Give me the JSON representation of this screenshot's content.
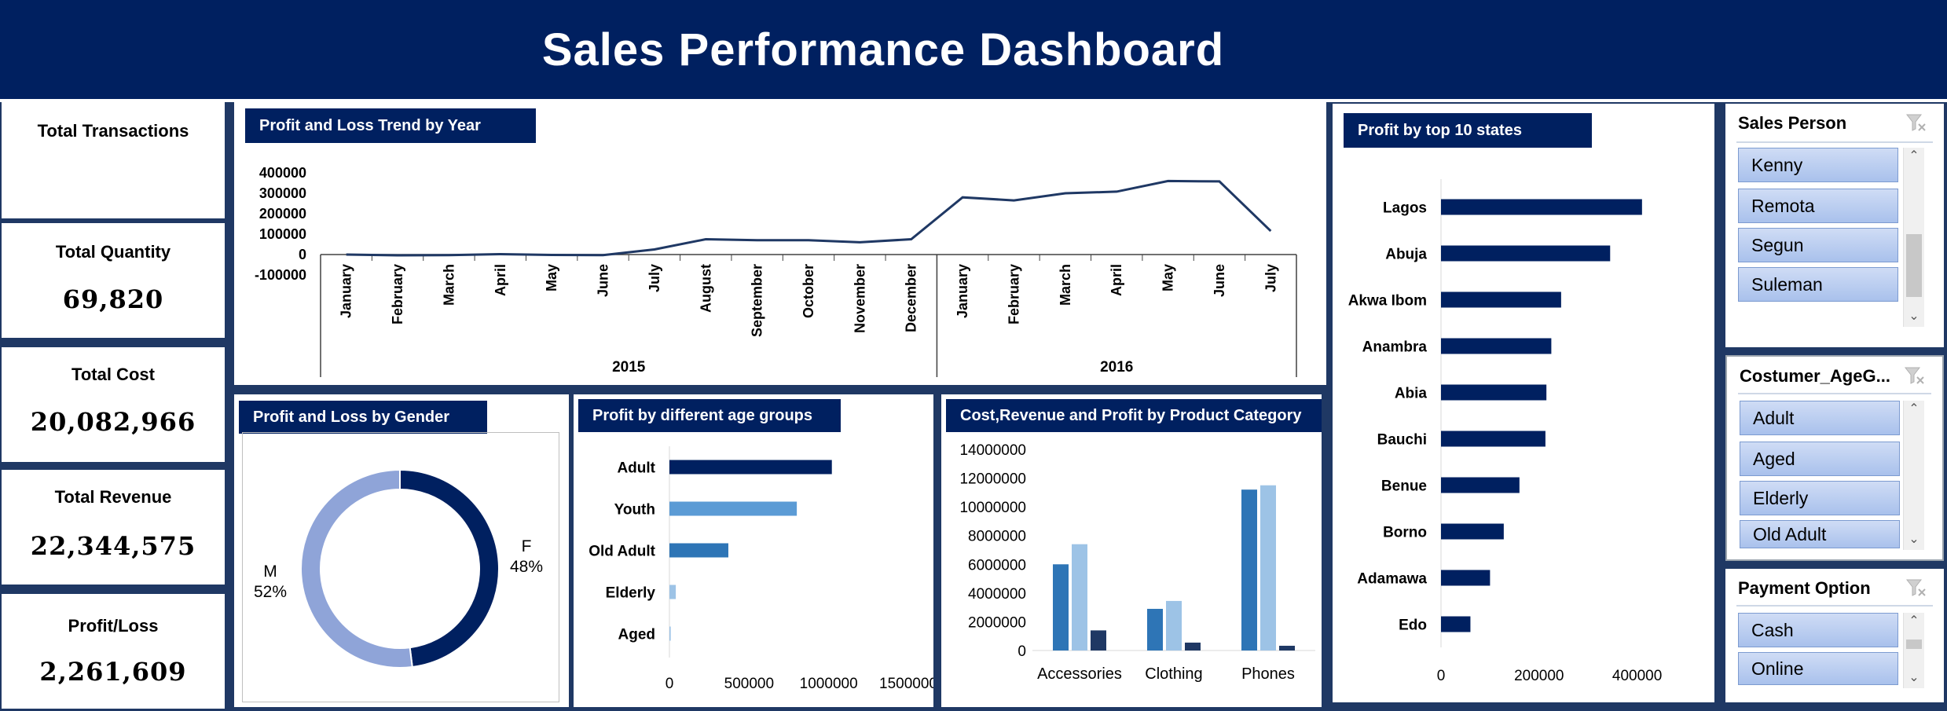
{
  "header": {
    "title": "Sales Performance Dashboard"
  },
  "kpis": [
    {
      "title": "Total Transactions",
      "value": ""
    },
    {
      "title": "Total Quantity",
      "value": "69,820"
    },
    {
      "title": "Total Cost",
      "value": "20,082,966"
    },
    {
      "title": "Total Revenue",
      "value": "22,344,575"
    },
    {
      "title": "Profit/Loss",
      "value": "2,261,609"
    }
  ],
  "colors": {
    "navy": "#002060",
    "mid_blue": "#2e75b6",
    "light_blue": "#9dc3e6",
    "sky_blue": "#5b9bd5",
    "dark_slate": "#1f3864",
    "donut_light": "#8fa4d8"
  },
  "slicers": {
    "sales_person": {
      "title": "Sales Person",
      "items": [
        "Kenny",
        "Remota",
        "Segun",
        "Suleman"
      ],
      "filter_icon": "clear-filter-icon"
    },
    "age_group": {
      "title": "Costumer_AgeG...",
      "items": [
        "Adult",
        "Aged",
        "Elderly",
        "Old Adult"
      ],
      "filter_icon": "clear-filter-icon"
    },
    "payment": {
      "title": "Payment Option",
      "items": [
        "Cash",
        "Online"
      ],
      "filter_icon": "clear-filter-icon"
    }
  },
  "chart_data": [
    {
      "id": "trend",
      "type": "line",
      "title": "Profit and Loss Trend by Year",
      "groups": [
        {
          "label": "2015",
          "categories": [
            "January",
            "February",
            "March",
            "April",
            "May",
            "June",
            "July",
            "August",
            "September",
            "October",
            "November",
            "December"
          ]
        },
        {
          "label": "2016",
          "categories": [
            "January",
            "February",
            "March",
            "April",
            "May",
            "June",
            "July"
          ]
        }
      ],
      "values": [
        0,
        -4000,
        -3000,
        2000,
        -2000,
        -3000,
        25000,
        75000,
        70000,
        70000,
        60000,
        75000,
        280000,
        265000,
        300000,
        308000,
        360000,
        358000,
        115000
      ],
      "yticks": [
        400000,
        300000,
        200000,
        100000,
        0,
        -100000
      ],
      "ylim": [
        -100000,
        400000
      ],
      "legend": "none"
    },
    {
      "id": "gender",
      "type": "pie",
      "variant": "donut",
      "title": "Profit and Loss by Gender",
      "slices": [
        {
          "label": "F",
          "percent_label": "48%",
          "value": 48
        },
        {
          "label": "M",
          "percent_label": "52%",
          "value": 52
        }
      ]
    },
    {
      "id": "age",
      "type": "bar",
      "orientation": "horizontal",
      "title": "Profit by different age groups",
      "categories": [
        "Adult",
        "Youth",
        "Old Adult",
        "Elderly",
        "Aged"
      ],
      "values": [
        1020000,
        800000,
        370000,
        40000,
        8000
      ],
      "xticks": [
        0,
        500000,
        1000000,
        1500000
      ],
      "xlim": [
        0,
        1500000
      ]
    },
    {
      "id": "category",
      "type": "bar",
      "title": "Cost,Revenue and Profit by Product  Category",
      "categories": [
        "Accessories",
        "Clothing",
        "Phones"
      ],
      "series": [
        {
          "values": [
            6000000,
            2900000,
            11200000
          ]
        },
        {
          "values": [
            7400000,
            3450000,
            11500000
          ]
        },
        {
          "values": [
            1400000,
            550000,
            330000
          ]
        }
      ],
      "yticks": [
        14000000,
        12000000,
        10000000,
        8000000,
        6000000,
        4000000,
        2000000,
        0
      ],
      "ylim": [
        0,
        14000000
      ],
      "legend": "none"
    },
    {
      "id": "states",
      "type": "bar",
      "orientation": "horizontal",
      "title": "Profit by top 10 states",
      "categories": [
        "Lagos",
        "Abuja",
        "Akwa Ibom",
        "Anambra",
        "Abia",
        "Bauchi",
        "Benue",
        "Borno",
        "Adamawa",
        "Edo"
      ],
      "values": [
        410000,
        345000,
        245000,
        225000,
        215000,
        213000,
        160000,
        128000,
        100000,
        60000
      ],
      "xticks": [
        0,
        200000,
        400000
      ],
      "xlim": [
        0,
        500000
      ]
    }
  ]
}
